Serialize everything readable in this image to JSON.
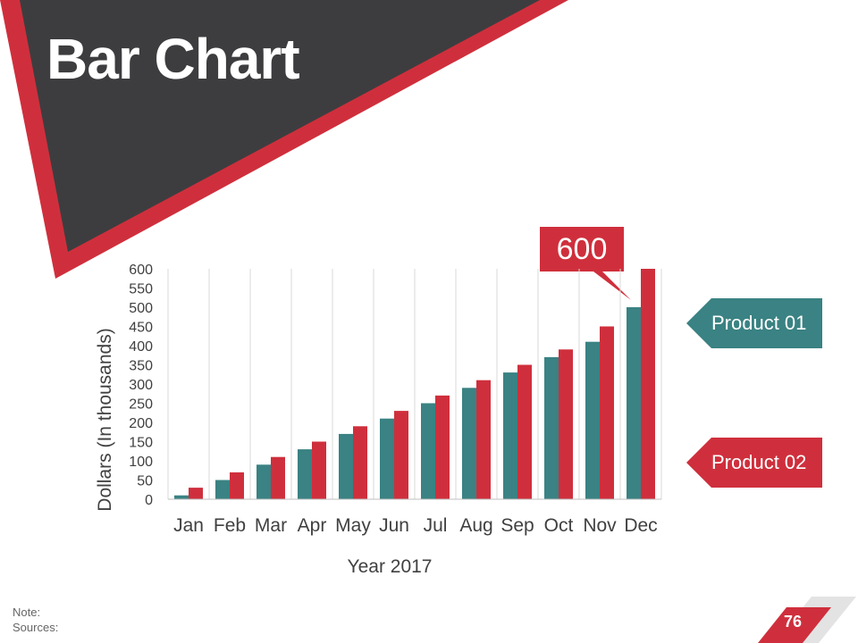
{
  "slide": {
    "title": "Bar Chart",
    "callout": "600",
    "note_label": "Note:",
    "sources_label": "Sources:",
    "page_number": "76"
  },
  "colors": {
    "dark": "#3d3d3f",
    "accent": "#cf2f3c",
    "series1": "#3a8283",
    "series2": "#cf2f3c",
    "grid": "#d9d9d9",
    "text": "#404040"
  },
  "legend": [
    {
      "label": "Product 01",
      "color": "#3a8283"
    },
    {
      "label": "Product 02",
      "color": "#cf2f3c"
    }
  ],
  "chart_data": {
    "type": "bar",
    "title": "",
    "xlabel": "Year 2017",
    "ylabel": "Dollars (In thousands)",
    "ylim": [
      0,
      600
    ],
    "yticks": [
      0,
      50,
      100,
      150,
      200,
      250,
      300,
      350,
      400,
      450,
      500,
      550,
      600
    ],
    "categories": [
      "Jan",
      "Feb",
      "Mar",
      "Apr",
      "May",
      "Jun",
      "Jul",
      "Aug",
      "Sep",
      "Oct",
      "Nov",
      "Dec"
    ],
    "series": [
      {
        "name": "Product 01",
        "values": [
          10,
          50,
          90,
          130,
          170,
          210,
          250,
          290,
          330,
          370,
          410,
          500
        ]
      },
      {
        "name": "Product 02",
        "values": [
          30,
          70,
          110,
          150,
          190,
          230,
          270,
          310,
          350,
          390,
          450,
          600
        ]
      }
    ]
  }
}
